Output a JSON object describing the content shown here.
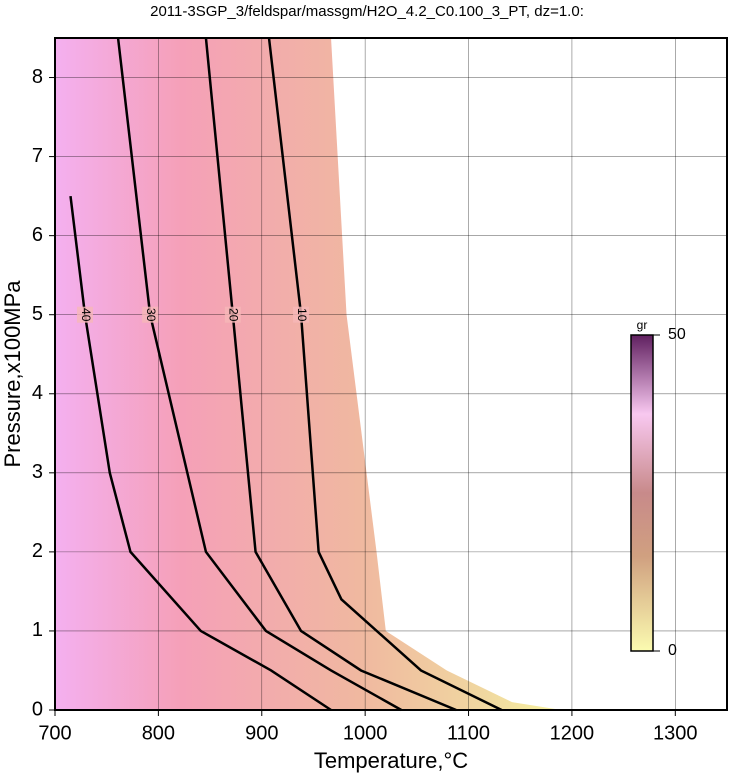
{
  "chart_data": {
    "type": "contour",
    "title": "2011-3SGP_3/feldspar/massgm/H2O_4.2_C0.100_3_PT, dz=1.0:",
    "x_label": "Temperature,°C",
    "y_label": "Pressure,x100MPa",
    "xlim": [
      700,
      1350
    ],
    "ylim": [
      0,
      8.5
    ],
    "xticks": [
      700,
      800,
      900,
      1000,
      1100,
      1200,
      1300
    ],
    "yticks": [
      0,
      1,
      2,
      3,
      4,
      5,
      6,
      7,
      8
    ],
    "grid": true,
    "boundary": {
      "x": [
        967,
        982,
        1011,
        1020,
        1079,
        1142,
        1190
      ],
      "y": [
        8.5,
        5,
        2,
        1,
        0.5,
        0.1,
        0
      ]
    },
    "series": [
      {
        "name": "10",
        "color": "#000000",
        "x": [
          907,
          938,
          955,
          977,
          1054,
          1132
        ],
        "y": [
          8.5,
          5,
          2,
          1.4,
          0.5,
          0
        ]
      },
      {
        "name": "20",
        "color": "#000000",
        "x": [
          846,
          872,
          894,
          938,
          996,
          1088
        ],
        "y": [
          8.5,
          5,
          2,
          1,
          0.5,
          0
        ]
      },
      {
        "name": "30",
        "color": "#000000",
        "x": [
          761,
          792,
          846,
          904,
          967,
          1035
        ],
        "y": [
          8.5,
          5,
          2,
          1,
          0.5,
          0
        ]
      },
      {
        "name": "40",
        "color": "#000000",
        "x": [
          715,
          729,
          753,
          773,
          841,
          909,
          967
        ],
        "y": [
          6.5,
          5,
          3,
          2,
          1,
          0.5,
          0
        ]
      }
    ],
    "colorbar": {
      "title": "gr",
      "ticks": [
        0,
        50
      ]
    }
  }
}
